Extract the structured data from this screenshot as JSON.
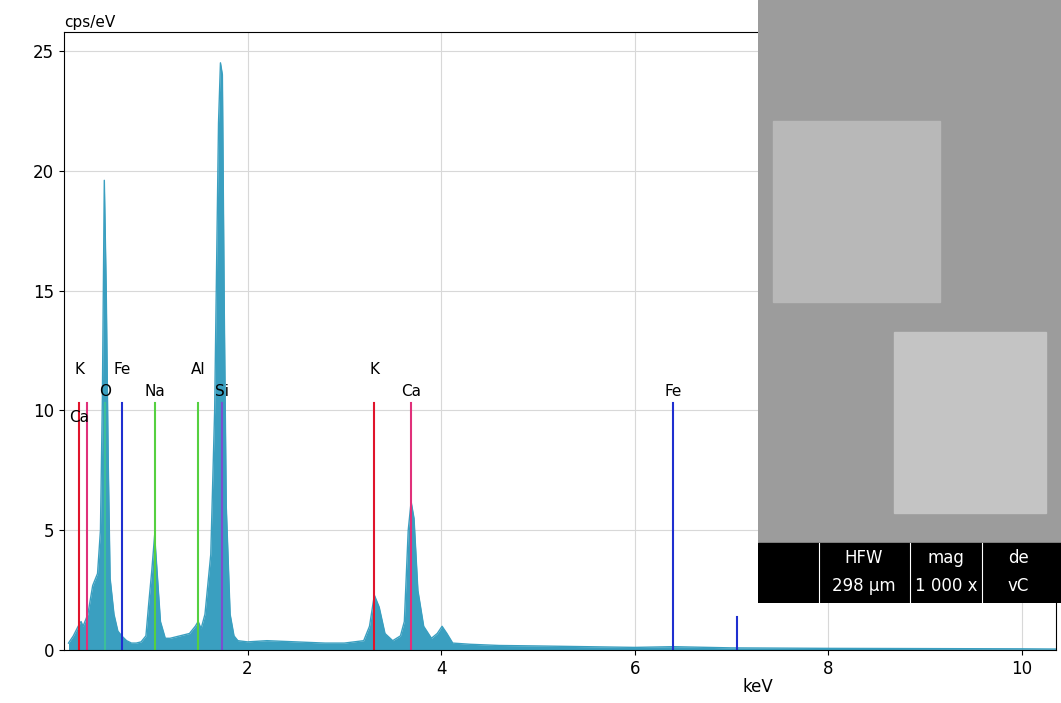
{
  "chart_data": {
    "type": "area",
    "x_label": "keV",
    "y_label": "cps/eV",
    "x": [
      0.15,
      0.2,
      0.25,
      0.28,
      0.3,
      0.35,
      0.4,
      0.45,
      0.48,
      0.5,
      0.52,
      0.54,
      0.56,
      0.58,
      0.62,
      0.66,
      0.7,
      0.75,
      0.8,
      0.85,
      0.9,
      0.95,
      0.98,
      1.01,
      1.04,
      1.07,
      1.1,
      1.15,
      1.2,
      1.3,
      1.4,
      1.46,
      1.49,
      1.52,
      1.56,
      1.62,
      1.66,
      1.7,
      1.72,
      1.74,
      1.76,
      1.78,
      1.82,
      1.86,
      1.9,
      2.0,
      2.2,
      2.5,
      2.8,
      3.0,
      3.2,
      3.26,
      3.31,
      3.36,
      3.42,
      3.5,
      3.58,
      3.62,
      3.66,
      3.69,
      3.72,
      3.76,
      3.82,
      3.9,
      3.96,
      4.01,
      4.06,
      4.12,
      4.3,
      4.6,
      5.0,
      5.5,
      6.0,
      6.4,
      7.0,
      8.0,
      9.0,
      10.0,
      10.4
    ],
    "values": [
      0.3,
      0.6,
      1.0,
      1.2,
      1.0,
      1.5,
      2.7,
      3.2,
      5.0,
      10.5,
      19.6,
      15.0,
      8.0,
      3.0,
      1.5,
      0.8,
      0.6,
      0.4,
      0.3,
      0.3,
      0.35,
      0.6,
      2.0,
      3.3,
      4.8,
      3.0,
      1.2,
      0.5,
      0.5,
      0.6,
      0.7,
      1.0,
      1.2,
      0.9,
      1.5,
      4.0,
      10.0,
      22.0,
      24.5,
      24.0,
      14.0,
      6.0,
      1.5,
      0.6,
      0.4,
      0.35,
      0.4,
      0.35,
      0.3,
      0.3,
      0.4,
      1.0,
      2.3,
      1.8,
      0.7,
      0.4,
      0.6,
      1.2,
      5.0,
      6.2,
      5.5,
      2.5,
      1.0,
      0.5,
      0.7,
      1.0,
      0.7,
      0.3,
      0.25,
      0.2,
      0.18,
      0.15,
      0.12,
      0.15,
      0.1,
      0.08,
      0.07,
      0.06,
      0.05
    ],
    "color": "#3a9fc0",
    "xlim": [
      0.1,
      10.35
    ],
    "xticks": [
      2,
      4,
      6,
      8,
      10
    ],
    "ylim": [
      0,
      25.8
    ],
    "yticks": [
      0,
      5,
      10,
      15,
      20,
      25
    ],
    "grid": true,
    "element_lines": [
      {
        "label": "K",
        "energy": 0.26,
        "height": 10.3,
        "color": "#e0142b"
      },
      {
        "label": "Ca",
        "energy": 0.34,
        "height": 10.3,
        "color": "#e0307a"
      },
      {
        "label": "O",
        "energy": 0.525,
        "height": 10.3,
        "color": "#3cbf9a"
      },
      {
        "label": "Fe",
        "energy": 0.705,
        "height": 10.3,
        "color": "#1f2fd0"
      },
      {
        "label": "Na",
        "energy": 1.04,
        "height": 10.3,
        "color": "#55d040"
      },
      {
        "label": "Al",
        "energy": 1.49,
        "height": 10.3,
        "color": "#55d040"
      },
      {
        "label": "Si",
        "energy": 1.74,
        "height": 10.3,
        "color": "#7a4fd0"
      },
      {
        "label": "K",
        "energy": 3.31,
        "height": 10.3,
        "color": "#e0142b"
      },
      {
        "label": "Ca",
        "energy": 3.69,
        "height": 10.3,
        "color": "#e0307a"
      },
      {
        "label": "Fe",
        "energy": 6.4,
        "height": 10.3,
        "color": "#1f2fd0"
      },
      {
        "energy": 7.06,
        "height": 1.4,
        "color": "#1f2fd0"
      }
    ],
    "inset": {
      "headers": [
        "HFW",
        "mag",
        "de"
      ],
      "values": [
        "298 µm",
        "1 000 x",
        "vC"
      ]
    }
  }
}
